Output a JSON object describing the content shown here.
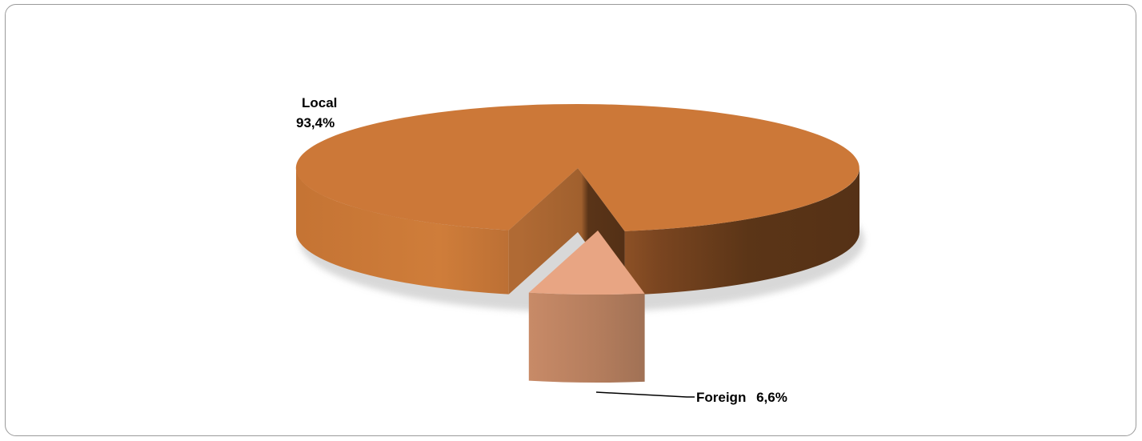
{
  "chart_data": {
    "type": "pie",
    "title": "",
    "slices": [
      {
        "label": "Local",
        "value": 93.4,
        "value_text": "93,4%",
        "color": "#cc7838"
      },
      {
        "label": "Foreign",
        "value": 6.6,
        "value_text": "6,6%",
        "color": "#e8a583"
      }
    ],
    "exploded_slice": "Foreign",
    "legend": "none",
    "style": "3d"
  }
}
